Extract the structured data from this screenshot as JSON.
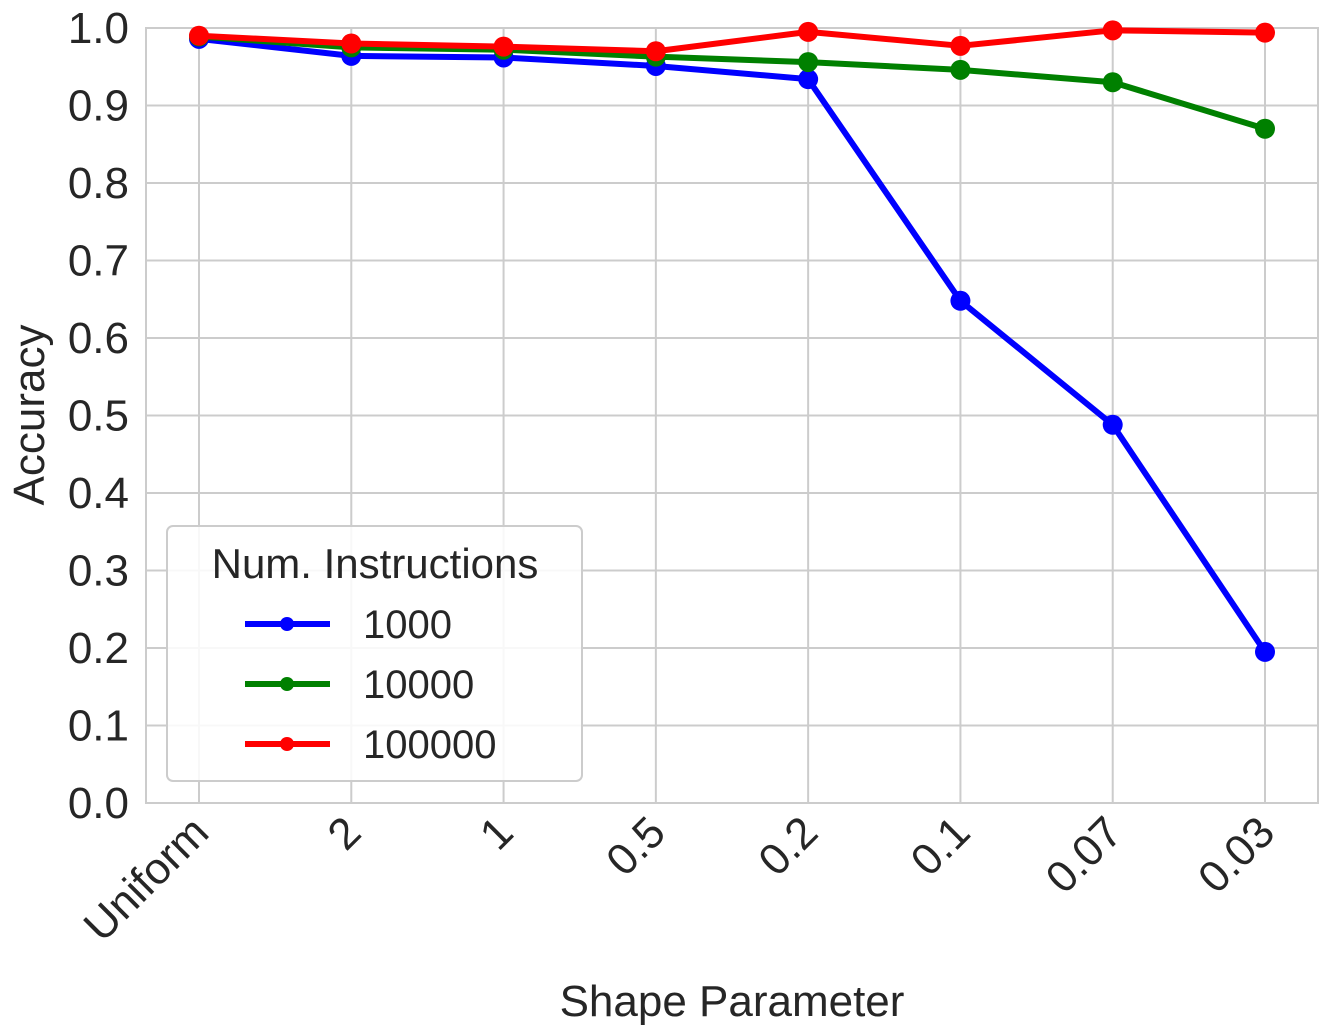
{
  "chart_data": {
    "type": "line",
    "xlabel": "Shape Parameter",
    "ylabel": "Accuracy",
    "categories": [
      "Uniform",
      "2",
      "1",
      "0.5",
      "0.2",
      "0.1",
      "0.07",
      "0.03"
    ],
    "ylim": [
      0.0,
      1.0
    ],
    "yticks": [
      "0.0",
      "0.1",
      "0.2",
      "0.3",
      "0.4",
      "0.5",
      "0.6",
      "0.7",
      "0.8",
      "0.9",
      "1.0"
    ],
    "grid": true,
    "legend": {
      "title": "Num. Instructions",
      "placement": "lower-left"
    },
    "series": [
      {
        "name": "1000",
        "color": "#0000ff",
        "values": [
          0.986,
          0.964,
          0.962,
          0.951,
          0.934,
          0.648,
          0.488,
          0.195
        ]
      },
      {
        "name": "10000",
        "color": "#008000",
        "values": [
          0.989,
          0.975,
          0.972,
          0.963,
          0.956,
          0.946,
          0.93,
          0.87
        ]
      },
      {
        "name": "100000",
        "color": "#ff0000",
        "values": [
          0.99,
          0.98,
          0.976,
          0.97,
          0.995,
          0.977,
          0.997,
          0.994
        ]
      }
    ]
  }
}
